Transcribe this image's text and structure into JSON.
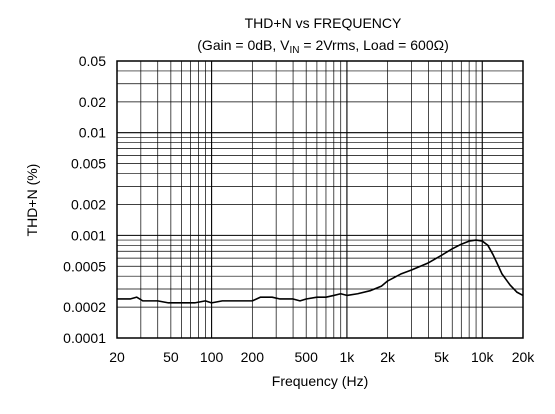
{
  "chart_data": {
    "type": "line",
    "title": "THD+N vs FREQUENCY",
    "subtitle": {
      "prefix": "(Gain = 0dB, V",
      "sub": "IN",
      "suffix": " = 2Vrms, Load = 600Ω)"
    },
    "xlabel": "Frequency (Hz)",
    "ylabel": "THD+N (%)",
    "xscale": "log",
    "yscale": "log",
    "xlim": [
      20,
      20000
    ],
    "ylim": [
      0.0001,
      0.05
    ],
    "grid": true,
    "x_ticks": [
      {
        "v": 20,
        "label": "20"
      },
      {
        "v": 50,
        "label": "50"
      },
      {
        "v": 100,
        "label": "100"
      },
      {
        "v": 200,
        "label": "200"
      },
      {
        "v": 500,
        "label": "500"
      },
      {
        "v": 1000,
        "label": "1k"
      },
      {
        "v": 2000,
        "label": "2k"
      },
      {
        "v": 5000,
        "label": "5k"
      },
      {
        "v": 10000,
        "label": "10k"
      },
      {
        "v": 20000,
        "label": "20k"
      }
    ],
    "y_ticks": [
      {
        "v": 0.05,
        "label": "0.05"
      },
      {
        "v": 0.02,
        "label": "0.02"
      },
      {
        "v": 0.01,
        "label": "0.01"
      },
      {
        "v": 0.005,
        "label": "0.005"
      },
      {
        "v": 0.002,
        "label": "0.002"
      },
      {
        "v": 0.001,
        "label": "0.001"
      },
      {
        "v": 0.0005,
        "label": "0.0005"
      },
      {
        "v": 0.0002,
        "label": "0.0002"
      },
      {
        "v": 0.0001,
        "label": "0.0001"
      }
    ],
    "series": [
      {
        "color": "#000000",
        "points": [
          [
            20,
            0.00024
          ],
          [
            25,
            0.00024
          ],
          [
            28,
            0.00025
          ],
          [
            31,
            0.00023
          ],
          [
            40,
            0.00023
          ],
          [
            48,
            0.00022
          ],
          [
            60,
            0.00022
          ],
          [
            75,
            0.00022
          ],
          [
            90,
            0.00023
          ],
          [
            100,
            0.00022
          ],
          [
            120,
            0.00023
          ],
          [
            150,
            0.00023
          ],
          [
            200,
            0.00023
          ],
          [
            230,
            0.00025
          ],
          [
            280,
            0.00025
          ],
          [
            320,
            0.00024
          ],
          [
            400,
            0.00024
          ],
          [
            450,
            0.00023
          ],
          [
            500,
            0.00024
          ],
          [
            600,
            0.00025
          ],
          [
            700,
            0.00025
          ],
          [
            800,
            0.00026
          ],
          [
            900,
            0.00027
          ],
          [
            1000,
            0.00026
          ],
          [
            1200,
            0.00027
          ],
          [
            1500,
            0.00029
          ],
          [
            1800,
            0.00032
          ],
          [
            2000,
            0.00036
          ],
          [
            2500,
            0.00042
          ],
          [
            3000,
            0.00046
          ],
          [
            4000,
            0.00054
          ],
          [
            5000,
            0.00064
          ],
          [
            6000,
            0.00074
          ],
          [
            7000,
            0.00082
          ],
          [
            8000,
            0.00088
          ],
          [
            9000,
            0.0009
          ],
          [
            10000,
            0.00088
          ],
          [
            11000,
            0.0008
          ],
          [
            12000,
            0.00065
          ],
          [
            13000,
            0.00052
          ],
          [
            14000,
            0.00042
          ],
          [
            16000,
            0.00033
          ],
          [
            18000,
            0.00028
          ],
          [
            20000,
            0.00026
          ]
        ]
      }
    ]
  }
}
